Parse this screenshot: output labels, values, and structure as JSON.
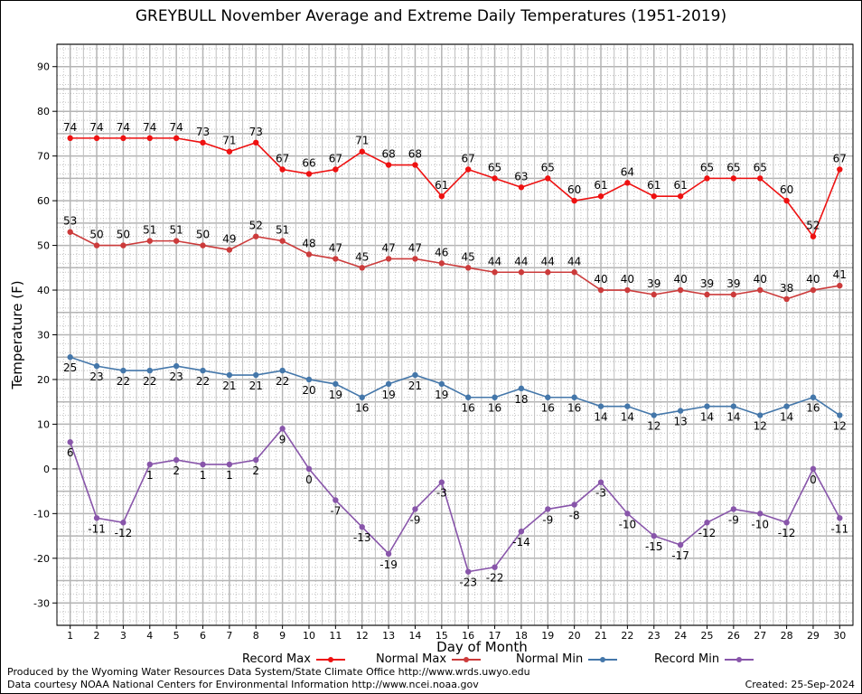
{
  "page": {
    "credit_line1": "Produced by the Wyoming Water Resources Data System/State Climate Office http://www.wrds.uwyo.edu",
    "credit_line2": "Data courtesy NOAA National Centers for Environmental Information http://www.ncei.noaa.gov",
    "created": "Created:  25-Sep-2024"
  },
  "chart_data": {
    "type": "line",
    "title": "GREYBULL November Average and Extreme Daily Temperatures (1951-2019)",
    "xlabel": "Day of Month",
    "ylabel": "Temperature (F)",
    "ylim": [
      -35,
      95
    ],
    "yticks": [
      -30,
      -20,
      -10,
      0,
      10,
      20,
      30,
      40,
      50,
      60,
      70,
      80,
      90
    ],
    "x": [
      1,
      2,
      3,
      4,
      5,
      6,
      7,
      8,
      9,
      10,
      11,
      12,
      13,
      14,
      15,
      16,
      17,
      18,
      19,
      20,
      21,
      22,
      23,
      24,
      25,
      26,
      27,
      28,
      29,
      30
    ],
    "grid": true,
    "legend_position": "bottom",
    "series": [
      {
        "name": "Record Max",
        "color": "#ee1111",
        "label_side": "above",
        "values": [
          74,
          74,
          74,
          74,
          74,
          73,
          71,
          73,
          67,
          66,
          67,
          71,
          68,
          68,
          61,
          67,
          65,
          63,
          65,
          60,
          61,
          64,
          61,
          61,
          65,
          65,
          65,
          60,
          52,
          67
        ]
      },
      {
        "name": "Normal Max",
        "color": "#cc3b3b",
        "label_side": "above",
        "values": [
          53,
          50,
          50,
          51,
          51,
          50,
          49,
          52,
          51,
          48,
          47,
          45,
          47,
          47,
          46,
          45,
          44,
          44,
          44,
          44,
          40,
          40,
          39,
          40,
          39,
          39,
          40,
          38,
          40,
          41
        ]
      },
      {
        "name": "Normal Min",
        "color": "#4477aa",
        "label_side": "below",
        "values": [
          25,
          23,
          22,
          22,
          23,
          22,
          21,
          21,
          22,
          20,
          19,
          16,
          19,
          21,
          19,
          16,
          16,
          18,
          16,
          16,
          14,
          14,
          12,
          13,
          14,
          14,
          12,
          14,
          16,
          12
        ]
      },
      {
        "name": "Record Min",
        "color": "#8855aa",
        "label_side": "below",
        "values": [
          6,
          -11,
          -12,
          1,
          2,
          1,
          1,
          2,
          9,
          0,
          -7,
          -13,
          -19,
          -9,
          -3,
          -23,
          -22,
          -14,
          -9,
          -8,
          -3,
          -10,
          -15,
          -17,
          -12,
          -9,
          -10,
          -12,
          0,
          -11
        ]
      }
    ]
  }
}
